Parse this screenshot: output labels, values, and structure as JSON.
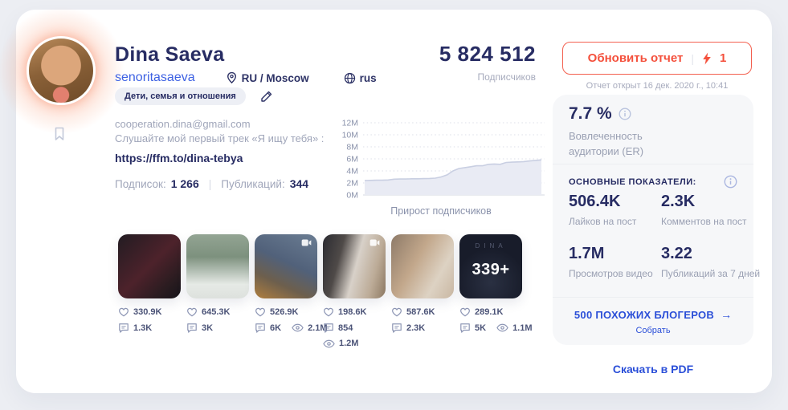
{
  "colors": {
    "accent_red": "#f4503c",
    "navy": "#272c63",
    "link_blue": "#2b4fd8",
    "username_blue": "#3d61e3",
    "muted": "#9aa0b3"
  },
  "profile": {
    "name": "Dina Saeva",
    "username": "senoritasaeva",
    "location": "RU / Moscow",
    "language": "rus",
    "category": "Дети, семья и отношения",
    "bio_email": "cooperation.dina@gmail.com",
    "bio_line": "Слушайте мой первый трек «Я ищу тебя» :",
    "bio_link": "https://ffm.to/dina-tebya",
    "following_label": "Подписок:",
    "following_value": "1 266",
    "posts_label": "Публикаций:",
    "posts_value": "344"
  },
  "followers": {
    "value": "5 824 512",
    "label": "Подписчиков"
  },
  "report": {
    "update_button": "Обновить отчет",
    "credits": "1",
    "opened": "Отчет открыт 16 дек. 2020 г., 10:41"
  },
  "chart_data": {
    "type": "area",
    "title": "Прирост подписчиков",
    "ylabel": "",
    "xlabel": "",
    "unit": "millions of followers",
    "ylim": [
      0,
      12
    ],
    "y_ticks": [
      "12M",
      "10M",
      "8M",
      "6M",
      "4M",
      "2M",
      "0M"
    ],
    "grid": "dotted horizontal",
    "values": [
      2.4,
      2.42,
      2.45,
      2.45,
      2.5,
      2.62,
      2.65,
      2.65,
      2.7,
      2.7,
      2.72,
      2.75,
      2.8,
      3.0,
      3.35,
      4.0,
      4.4,
      4.55,
      4.7,
      4.85,
      4.85,
      5.1,
      5.15,
      5.1,
      5.4,
      5.45,
      5.5,
      5.55,
      5.65,
      5.75,
      5.82
    ]
  },
  "panel": {
    "er_value": "7.7 %",
    "er_label": "Вовлеченность аудитории (ER)",
    "metrics_title": "ОСНОВНЫЕ ПОКАЗАТЕЛИ:",
    "metrics": [
      {
        "value": "506.4K",
        "label": "Лайков на пост"
      },
      {
        "value": "2.3K",
        "label": "Комментов на пост"
      },
      {
        "value": "1.7M",
        "label": "Просмотров видео"
      },
      {
        "value": "3.22",
        "label": "Публикаций за 7 дней"
      }
    ],
    "similar_title": "500 ПОХОЖИХ БЛОГЕРОВ",
    "similar_arrow": "→",
    "similar_action": "Собрать",
    "download_pdf": "Скачать в PDF"
  },
  "posts": {
    "items": [
      {
        "likes": "330.9K",
        "comments": "1.3K"
      },
      {
        "likes": "645.3K",
        "comments": "3K"
      },
      {
        "likes": "526.9K",
        "comments": "6K",
        "views": "2.1M"
      },
      {
        "likes": "198.6K",
        "comments": "854",
        "views": "1.2M"
      },
      {
        "likes": "587.6K",
        "comments": "2.3K"
      },
      {
        "likes": "289.1K",
        "comments": "5K",
        "views": "1.1M"
      }
    ],
    "more_tile": {
      "brand": "DINA",
      "count": "339+"
    }
  }
}
